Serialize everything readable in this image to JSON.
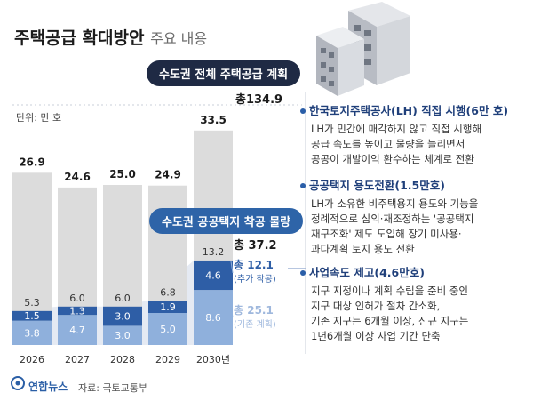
{
  "header": {
    "title": "주택공급 확대방안",
    "subtitle": "주요 내용"
  },
  "badges": {
    "metro_total_plan": "수도권 전체 주택공급 계획",
    "metro_public_land": "수도권 공공택지 착공 물량"
  },
  "unit_label": "단위: 만 호",
  "source": "자료: 국토교통부",
  "logo_text": "연합뉴스",
  "colors": {
    "navy": "#1f2a44",
    "blue_dark": "#2e5ea6",
    "blue_light": "#8fb0dc",
    "bar_gray": "#dcdcdc",
    "band": "#cfd8ea"
  },
  "chart_data": {
    "type": "bar",
    "categories": [
      "2026",
      "2027",
      "2028",
      "2029",
      "2030년"
    ],
    "totals": [
      26.9,
      24.6,
      25.0,
      24.9,
      33.5
    ],
    "public_land_totals": [
      5.3,
      6.0,
      6.0,
      6.8,
      13.2
    ],
    "series": [
      {
        "name": "추가 착공",
        "values": [
          1.5,
          1.3,
          3.0,
          1.9,
          4.6
        ]
      },
      {
        "name": "기존 계획",
        "values": [
          3.8,
          4.7,
          3.0,
          5.0,
          8.6
        ]
      }
    ],
    "sum_total": "총134.9",
    "sum_public": "총 37.2",
    "sum_added": "총 12.1",
    "sum_added_label": "(추가 착공)",
    "sum_existing": "총 25.1",
    "sum_existing_label": "(기존 계획)"
  },
  "panel": {
    "items": [
      {
        "head": "한국토지주택공사(LH) 직접 시행(6만 호)",
        "lines": [
          "LH가 민간에 매각하지 않고 직접 시행해",
          "공급 속도를 높이고 물량을 늘리면서",
          "공공이 개발이익 환수하는 체계로 전환"
        ]
      },
      {
        "head": "공공택지 용도전환(1.5만호)",
        "lines": [
          "LH가 소유한 비주택용지 용도와 기능을",
          "정례적으로 심의·재조정하는 '공공택지",
          "재구조화' 제도 도입해 장기 미사용·",
          "과다계획 토지 용도 전환"
        ]
      },
      {
        "head": "사업속도 제고(4.6만호)",
        "lines": [
          "지구 지정이나 계획 수립을 준비 중인",
          "지구 대상 인허가 절차 간소화,",
          "기존 지구는 6개월 이상, 신규 지구는",
          "1년6개월 이상 사업 기간 단축"
        ]
      }
    ]
  }
}
